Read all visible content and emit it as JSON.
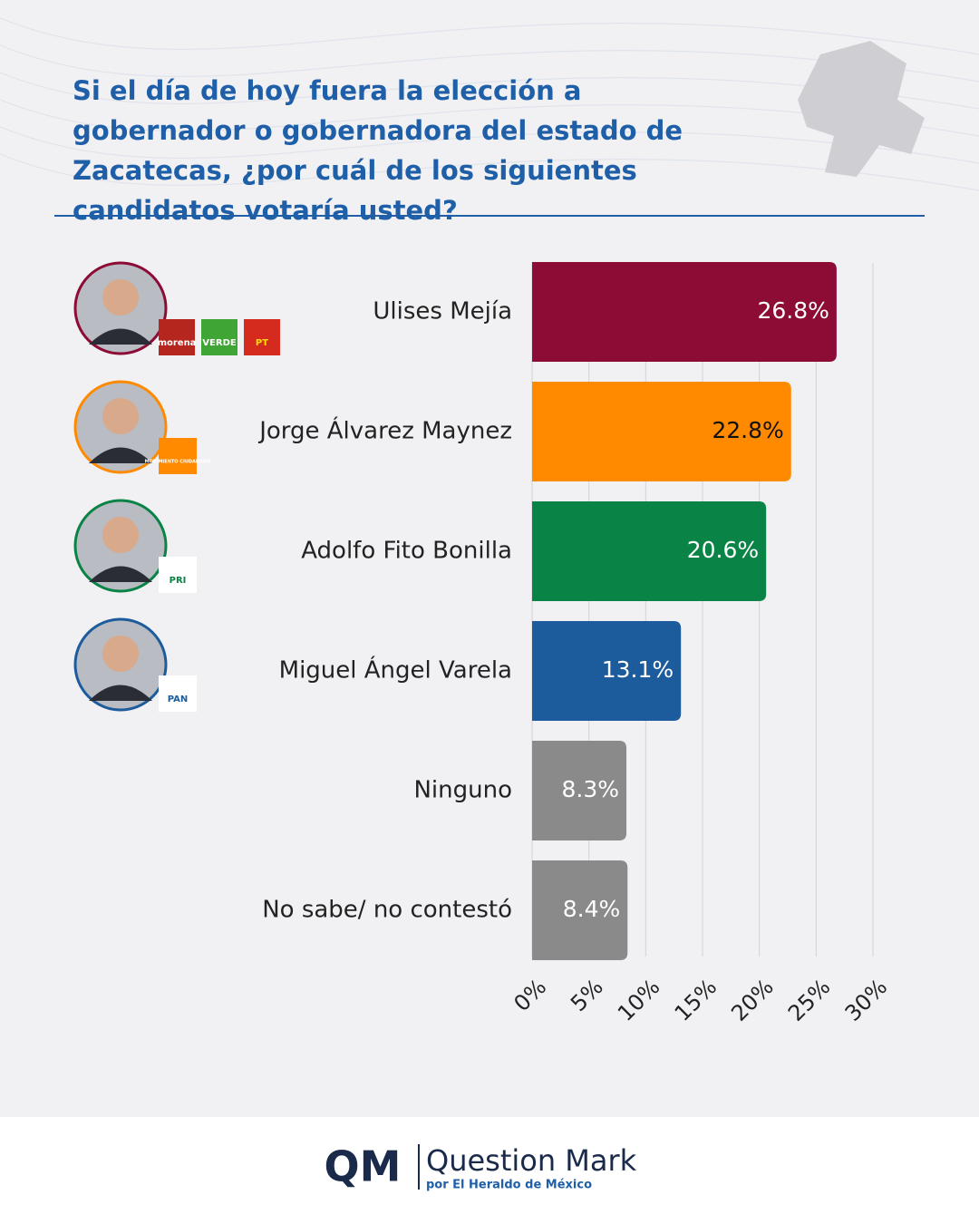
{
  "title": "Si el día de hoy fuera la elección a gobernador o gobernadora del estado de Zacatecas, ¿por cuál de los siguientes candidatos votaría usted?",
  "chart_data": {
    "type": "hbar",
    "categories": [
      "Ulises Mejía",
      "Jorge Álvarez Maynez",
      "Adolfo Fito Bonilla",
      "Miguel Ángel Varela",
      "Ninguno",
      "No sabe/ no contestó"
    ],
    "values": [
      26.8,
      22.8,
      20.6,
      13.1,
      8.3,
      8.4
    ],
    "value_labels": [
      "26.8%",
      "22.8%",
      "20.6%",
      "13.1%",
      "8.3%",
      "8.4%"
    ],
    "colors": [
      "#8c0c35",
      "#ff8a00",
      "#0a8346",
      "#1c5c9c",
      "#8a8a8a",
      "#8a8a8a"
    ],
    "value_label_colors": [
      "#ffffff",
      "#111111",
      "#ffffff",
      "#ffffff",
      "#ffffff",
      "#ffffff"
    ],
    "xlim": [
      0,
      30
    ],
    "xticks": [
      {
        "value": 0,
        "label": "0%"
      },
      {
        "value": 5,
        "label": "5%"
      },
      {
        "value": 10,
        "label": "10%"
      },
      {
        "value": 15,
        "label": "15%"
      },
      {
        "value": 20,
        "label": "20%"
      },
      {
        "value": 25,
        "label": "25%"
      },
      {
        "value": 30,
        "label": "30%"
      }
    ],
    "grid": true
  },
  "party_logos": [
    [
      "morena",
      "VERDE",
      "PT"
    ],
    [
      "MOVIMIENTO CIUDADANO"
    ],
    [
      "PRI"
    ],
    [
      "PAN"
    ]
  ],
  "footer": {
    "logo": "QM",
    "brand": "Question Mark",
    "tagline": "por El Heraldo de México"
  }
}
